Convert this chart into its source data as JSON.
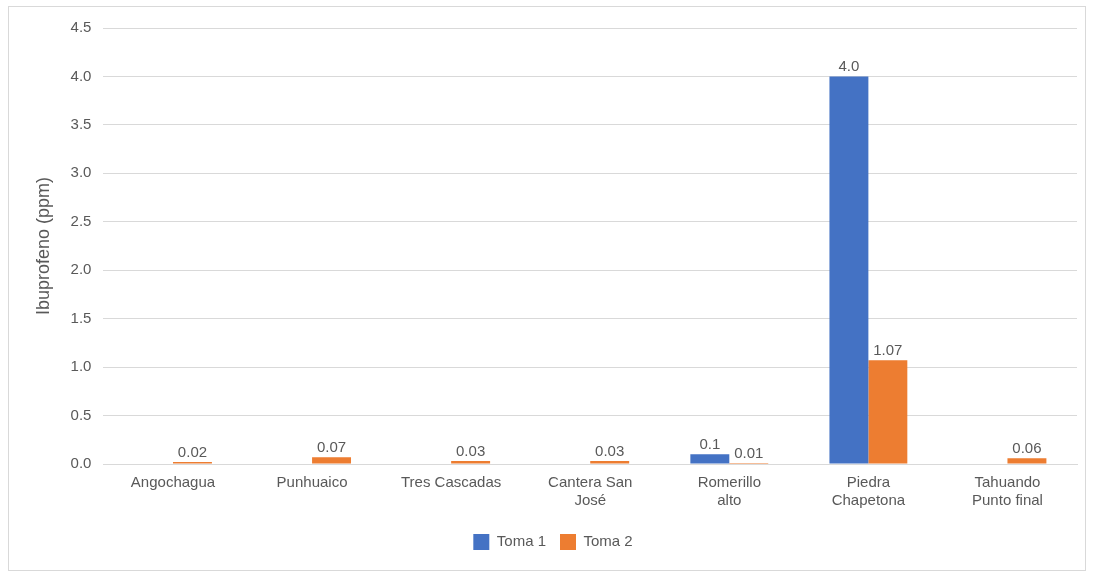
{
  "chart_data": {
    "type": "bar",
    "ylabel": "Ibuprofeno (ppm)",
    "categories": [
      "Angochagua",
      "Punhuaico",
      "Tres Cascadas",
      "Cantera San José",
      "Romerillo alto",
      "Piedra Chapetona",
      "Tahuando Punto final"
    ],
    "series": [
      {
        "name": "Toma 1",
        "color": "#4472c4",
        "values": [
          null,
          null,
          null,
          null,
          0.1,
          4.0,
          null
        ],
        "value_labels": [
          null,
          null,
          null,
          null,
          "0.1",
          "4.0",
          null
        ]
      },
      {
        "name": "Toma 2",
        "color": "#ed7d31",
        "values": [
          0.02,
          0.07,
          0.03,
          0.03,
          0.01,
          1.07,
          0.06
        ],
        "value_labels": [
          "0.02",
          "0.07",
          "0.03",
          "0.03",
          "0.01",
          "1.07",
          "0.06"
        ]
      }
    ],
    "ylim": [
      0,
      4.5
    ],
    "yticks": [
      {
        "value": 0,
        "label": "0.0"
      },
      {
        "value": 0.5,
        "label": "0.5"
      },
      {
        "value": 1,
        "label": "1.0"
      },
      {
        "value": 1.5,
        "label": "1.5"
      },
      {
        "value": 2,
        "label": "2.0"
      },
      {
        "value": 2.5,
        "label": "2.5"
      },
      {
        "value": 3,
        "label": "3.0"
      },
      {
        "value": 3.5,
        "label": "3.5"
      },
      {
        "value": 4,
        "label": "4.0"
      },
      {
        "value": 4.5,
        "label": "4.5"
      }
    ],
    "grid": "y",
    "legend": "bottom"
  }
}
